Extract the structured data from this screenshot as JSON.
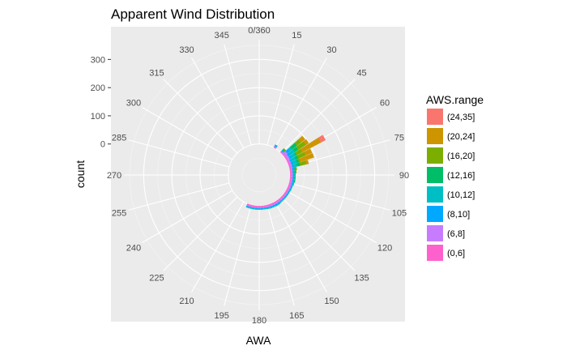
{
  "chart_data": {
    "type": "bar",
    "coord": "polar",
    "stacked": true,
    "title": "Apparent Wind Distribution",
    "xlabel": "AWA",
    "ylabel": "count",
    "x_ticks": [
      "0/360",
      "15",
      "30",
      "45",
      "60",
      "75",
      "90",
      "105",
      "120",
      "135",
      "150",
      "165",
      "180",
      "195",
      "210",
      "225",
      "240",
      "255",
      "270",
      "285",
      "300",
      "315",
      "330",
      "345"
    ],
    "y_ticks": [
      "0",
      "100",
      "200",
      "300"
    ],
    "ylim": [
      -110,
      370
    ],
    "grid": true,
    "legend": {
      "title": "AWS.range",
      "placement": "right",
      "entries": [
        "(24,35]",
        "(20,24]",
        "(16,20]",
        "(12,16]",
        "(10,12]",
        "(8,10]",
        "(6,8]",
        "(0,6]"
      ]
    },
    "categories": [
      30,
      45,
      50,
      55,
      60,
      65,
      70,
      75,
      80,
      85,
      90,
      95,
      100,
      105,
      110,
      115,
      120,
      125,
      130,
      135,
      140,
      145,
      150,
      155,
      160,
      165,
      170,
      175,
      180,
      185,
      190,
      195,
      200
    ],
    "series": [
      {
        "name": "(24,35]",
        "color": "#F8766D",
        "values": [
          0,
          0,
          0,
          0,
          18,
          0,
          0,
          0,
          0,
          0,
          0,
          0,
          0,
          0,
          0,
          0,
          0,
          0,
          0,
          0,
          0,
          0,
          0,
          0,
          0,
          0,
          0,
          0,
          0,
          0,
          0,
          0,
          0
        ]
      },
      {
        "name": "(20,24]",
        "color": "#CD9600",
        "values": [
          0,
          0,
          18,
          12,
          75,
          24,
          50,
          8,
          0,
          0,
          0,
          0,
          0,
          0,
          0,
          0,
          0,
          0,
          0,
          0,
          0,
          0,
          0,
          0,
          0,
          0,
          0,
          0,
          0,
          0,
          0,
          0,
          0
        ]
      },
      {
        "name": "(16,20]",
        "color": "#7CAE00",
        "values": [
          0,
          4,
          18,
          32,
          22,
          28,
          5,
          22,
          4,
          2,
          0,
          0,
          0,
          0,
          0,
          0,
          0,
          0,
          0,
          0,
          0,
          0,
          0,
          0,
          0,
          0,
          0,
          0,
          0,
          0,
          0,
          0,
          0
        ]
      },
      {
        "name": "(12,16]",
        "color": "#00BE67",
        "values": [
          0,
          3,
          22,
          14,
          5,
          10,
          8,
          12,
          3,
          3,
          2,
          2,
          2,
          0,
          0,
          0,
          0,
          0,
          0,
          0,
          0,
          0,
          0,
          0,
          0,
          0,
          0,
          0,
          0,
          0,
          0,
          0,
          0
        ]
      },
      {
        "name": "(10,12]",
        "color": "#00BFC4",
        "values": [
          3,
          3,
          10,
          18,
          15,
          15,
          14,
          12,
          4,
          3,
          3,
          3,
          3,
          3,
          2,
          2,
          2,
          2,
          2,
          2,
          2,
          2,
          2,
          2,
          2,
          2,
          2,
          2,
          2,
          2,
          2,
          2,
          2
        ]
      },
      {
        "name": "(8,10]",
        "color": "#00A9FF",
        "values": [
          3,
          3,
          12,
          10,
          8,
          5,
          6,
          5,
          4,
          4,
          4,
          4,
          4,
          4,
          3,
          3,
          3,
          3,
          3,
          3,
          3,
          5,
          5,
          4,
          4,
          3,
          3,
          3,
          3,
          3,
          3,
          3,
          3
        ]
      },
      {
        "name": "(6,8]",
        "color": "#C77CFF",
        "values": [
          3,
          3,
          10,
          8,
          8,
          6,
          6,
          6,
          5,
          5,
          5,
          5,
          5,
          5,
          5,
          5,
          4,
          4,
          4,
          4,
          4,
          4,
          4,
          4,
          4,
          4,
          3,
          3,
          3,
          3,
          3,
          3,
          3
        ]
      },
      {
        "name": "(0,6]",
        "color": "#FF61CC",
        "values": [
          3,
          3,
          6,
          5,
          5,
          5,
          5,
          5,
          5,
          5,
          5,
          5,
          5,
          5,
          5,
          5,
          5,
          5,
          5,
          5,
          5,
          5,
          5,
          5,
          5,
          5,
          5,
          5,
          5,
          5,
          5,
          5,
          5
        ]
      }
    ]
  }
}
